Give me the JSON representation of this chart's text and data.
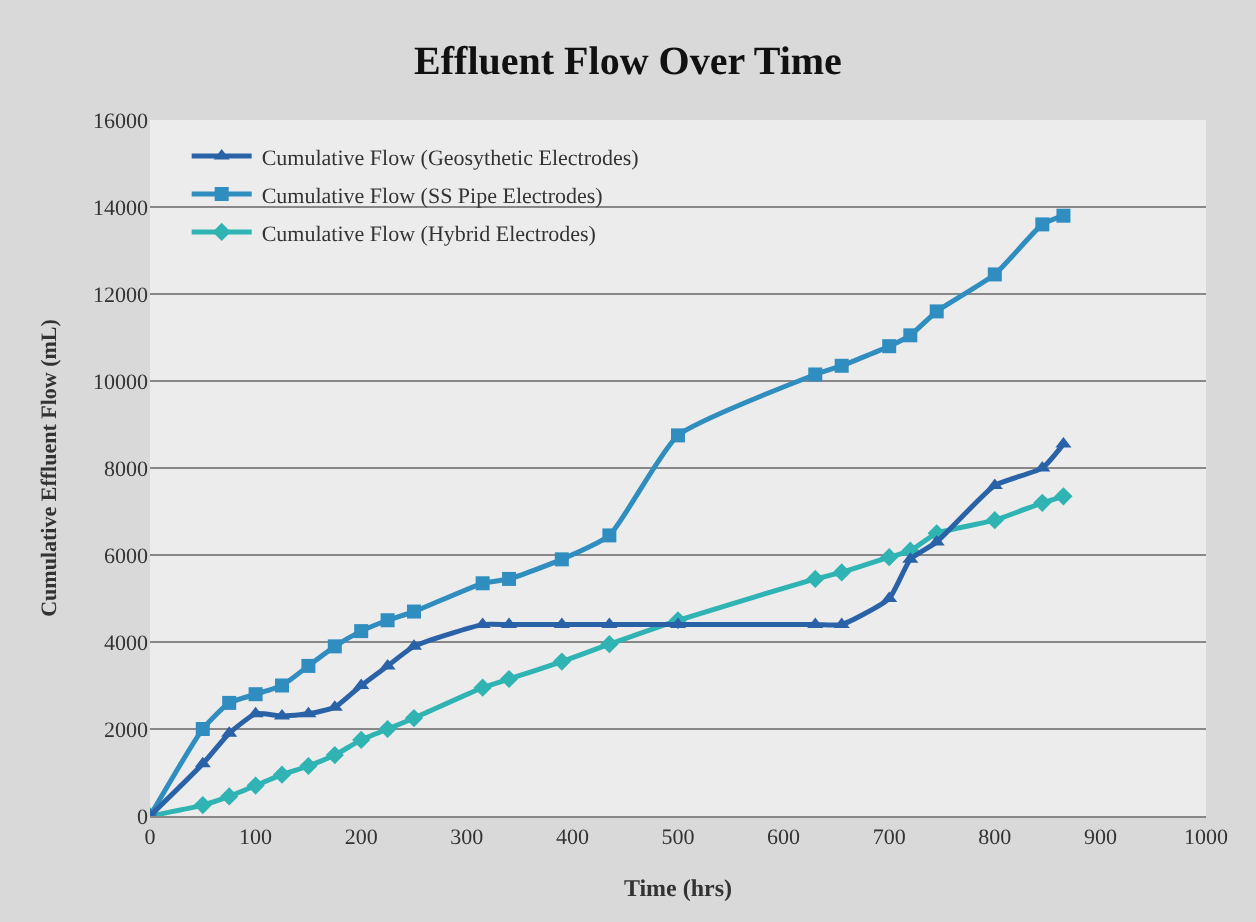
{
  "chart_data": {
    "type": "line",
    "title": "Effluent Flow Over Time",
    "xlabel": "Time (hrs)",
    "ylabel": "Cumulative Effluent Flow (mL)",
    "x": [
      0,
      50,
      75,
      100,
      125,
      150,
      175,
      200,
      225,
      250,
      315,
      340,
      390,
      435,
      500,
      630,
      655,
      700,
      720,
      745,
      800,
      845,
      865
    ],
    "series": [
      {
        "name": "Cumulative Flow (Geosythetic Electrodes)",
        "color": "#2a62a8",
        "marker": "triangle",
        "values": [
          0,
          1200,
          1900,
          2350,
          2300,
          2350,
          2500,
          3000,
          3450,
          3900,
          4400,
          4400,
          4400,
          4400,
          4400,
          4400,
          4400,
          5000,
          5900,
          6300,
          7600,
          8000,
          8550
        ]
      },
      {
        "name": "Cumulative Flow (SS Pipe Electrodes)",
        "color": "#2f8dc0",
        "marker": "square",
        "values": [
          0,
          2000,
          2600,
          2800,
          3000,
          3450,
          3900,
          4250,
          4500,
          4700,
          5350,
          5450,
          5900,
          6450,
          8750,
          10150,
          10350,
          10800,
          11050,
          11600,
          12450,
          13600,
          13800
        ]
      },
      {
        "name": "Cumulative Flow (Hybrid Electrodes)",
        "color": "#2fb3b3",
        "marker": "diamond",
        "values": [
          0,
          250,
          450,
          700,
          950,
          1150,
          1400,
          1750,
          2000,
          2250,
          2950,
          3150,
          3550,
          3950,
          4500,
          5450,
          5600,
          5950,
          6100,
          6500,
          6800,
          7200,
          7350
        ]
      }
    ],
    "xlim": [
      0,
      1000
    ],
    "xticks": [
      0,
      100,
      200,
      300,
      400,
      500,
      600,
      700,
      800,
      900,
      1000
    ],
    "ylim": [
      0,
      16000
    ],
    "yticks": [
      0,
      2000,
      4000,
      6000,
      8000,
      10000,
      12000,
      14000,
      16000
    ],
    "grid": "y",
    "legend": "top left",
    "line_style": "solid"
  }
}
